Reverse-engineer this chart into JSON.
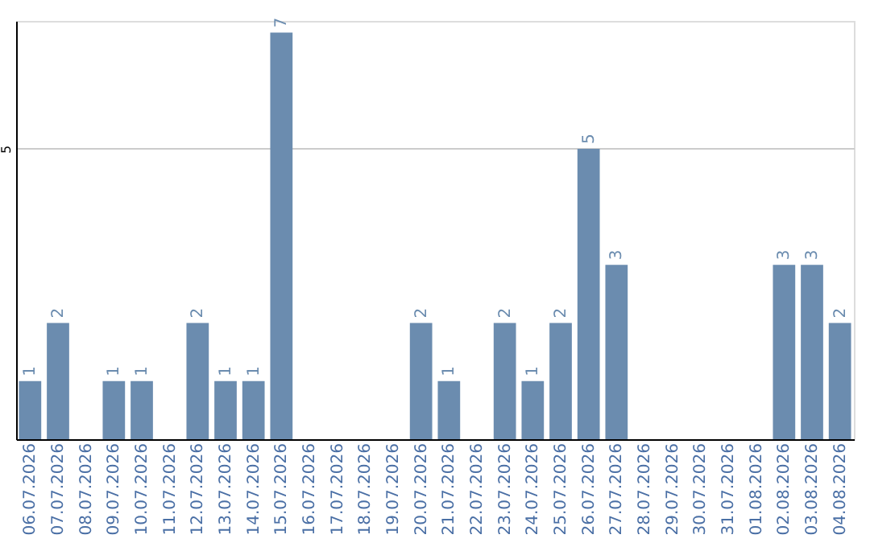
{
  "chart_data": {
    "type": "bar",
    "categories": [
      "06.07.2026",
      "07.07.2026",
      "08.07.2026",
      "09.07.2026",
      "10.07.2026",
      "11.07.2026",
      "12.07.2026",
      "13.07.2026",
      "14.07.2026",
      "15.07.2026",
      "16.07.2026",
      "17.07.2026",
      "18.07.2026",
      "19.07.2026",
      "20.07.2026",
      "21.07.2026",
      "22.07.2026",
      "23.07.2026",
      "24.07.2026",
      "25.07.2026",
      "26.07.2026",
      "27.07.2026",
      "28.07.2026",
      "29.07.2026",
      "30.07.2026",
      "31.07.2026",
      "01.08.2026",
      "02.08.2026",
      "03.08.2026",
      "04.08.2026"
    ],
    "values": [
      1,
      2,
      0,
      1,
      1,
      0,
      2,
      1,
      1,
      7,
      0,
      0,
      0,
      0,
      2,
      1,
      0,
      2,
      1,
      2,
      5,
      3,
      0,
      0,
      0,
      0,
      0,
      3,
      3,
      2
    ],
    "value_labels": [
      "1",
      "2",
      null,
      "1",
      "1",
      null,
      "2",
      "1",
      "1",
      "7",
      null,
      null,
      null,
      null,
      "2",
      "1",
      null,
      "2",
      "1",
      "2",
      "5",
      "3",
      null,
      null,
      null,
      null,
      null,
      "3",
      "3",
      "2"
    ],
    "color": "#6b8caf",
    "ylim": [
      0,
      7.2
    ],
    "yticks": [
      5
    ],
    "grid": "y"
  }
}
